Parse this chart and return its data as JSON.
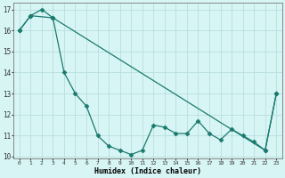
{
  "xlabel": "Humidex (Indice chaleur)",
  "xlim": [
    -0.5,
    23.5
  ],
  "ylim": [
    9.9,
    17.3
  ],
  "yticks": [
    10,
    11,
    12,
    13,
    14,
    15,
    16,
    17
  ],
  "xticks": [
    0,
    1,
    2,
    3,
    4,
    5,
    6,
    7,
    8,
    9,
    10,
    11,
    12,
    13,
    14,
    15,
    16,
    17,
    18,
    19,
    20,
    21,
    22,
    23
  ],
  "line1_x": [
    0,
    1,
    2,
    3,
    4,
    5,
    6,
    7,
    8,
    9,
    10,
    11,
    12,
    13,
    14,
    15,
    16,
    17,
    18,
    19,
    20,
    21,
    22,
    23
  ],
  "line1_y": [
    16.0,
    16.7,
    17.0,
    16.6,
    14.0,
    13.0,
    12.4,
    11.0,
    10.5,
    10.3,
    10.1,
    10.3,
    11.5,
    11.4,
    11.1,
    11.1,
    11.7,
    11.1,
    10.8,
    11.3,
    11.0,
    10.7,
    10.3,
    13.0
  ],
  "line2_x": [
    0,
    1,
    3,
    22,
    23
  ],
  "line2_y": [
    16.0,
    16.7,
    16.6,
    10.3,
    13.0
  ],
  "line_color": "#1a7a6e",
  "bg_color": "#d8f5f5",
  "grid_color": "#b8dede",
  "marker": "D",
  "markersize": 2.5,
  "linewidth": 0.9
}
